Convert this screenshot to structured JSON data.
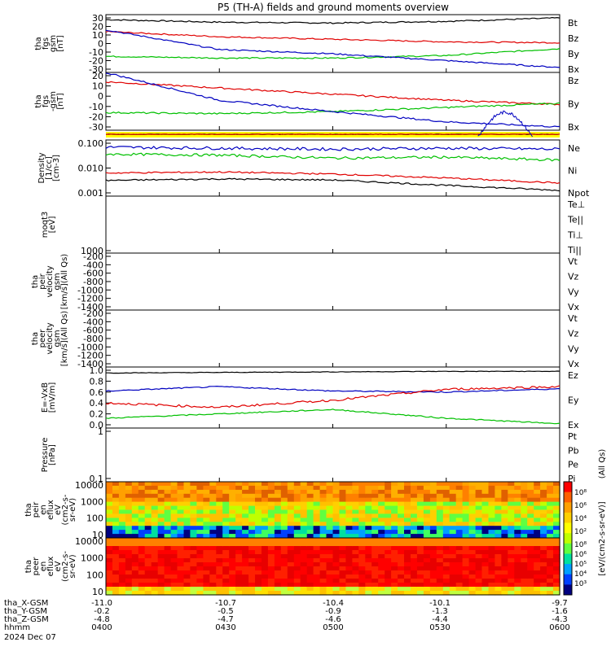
{
  "title": "P5 (TH-A) fields and ground moments overview",
  "panels": [
    {
      "ylabel": [
        "tha",
        "fgs",
        "gsm",
        "[nT]"
      ],
      "ticks": [
        "30",
        "20",
        "10",
        "0",
        "-10",
        "-20",
        "-30"
      ],
      "legend": [
        [
          "Bt",
          "#000000"
        ],
        [
          "Bz",
          "#e00000"
        ],
        [
          "By",
          "#00c000"
        ],
        [
          "Bx",
          "#0000c0"
        ]
      ]
    },
    {
      "ylabel": [
        "tha",
        "fgs",
        "-gsm",
        "[nT]"
      ],
      "ticks": [
        "20",
        "10",
        "0",
        "-10",
        "-20",
        "-30"
      ],
      "legend": [
        [
          "Bz",
          "#e00000"
        ],
        [
          "By",
          "#00c000"
        ],
        [
          "Bx",
          "#0000c0"
        ]
      ]
    },
    {
      "ylabel": [
        "Density",
        "[1/cc]",
        "[cm-3]"
      ],
      "ticks": [
        "0.100",
        "0.010",
        "0.001"
      ],
      "legend": [
        [
          "Ne",
          "#e00000"
        ],
        [
          "Ni",
          "#000000"
        ],
        [
          "Npot",
          "#0000c0"
        ]
      ]
    },
    {
      "ylabel": [
        "moqt3",
        "[eV]"
      ],
      "ticks": [
        "1000"
      ],
      "legend": [
        [
          "Te⊥",
          "#e00000"
        ],
        [
          "Te||",
          "#000000"
        ],
        [
          "Ti⊥",
          "#e00000"
        ],
        [
          "Ti||",
          "#00c000"
        ]
      ]
    },
    {
      "ylabel": [
        "tha",
        "peir",
        "velocity",
        "gsm",
        "[km/s](All Qs)"
      ],
      "ticks": [
        "-200",
        "-400",
        "-600",
        "-800",
        "-1000",
        "-1200",
        "-1400"
      ],
      "legend": [
        [
          "Vt",
          "#000000"
        ],
        [
          "Vz",
          "#e00000"
        ],
        [
          "Vy",
          "#00c000"
        ],
        [
          "Vx",
          "#0000c0"
        ]
      ]
    },
    {
      "ylabel": [
        "tha",
        "peer",
        "velocity",
        "gsm",
        "[km/s](All Qs)"
      ],
      "ticks": [
        "-200",
        "-400",
        "-600",
        "-800",
        "-1000",
        "-1200",
        "-1400"
      ],
      "legend": [
        [
          "Vt",
          "#000000"
        ],
        [
          "Vz",
          "#e00000"
        ],
        [
          "Vy",
          "#00c000"
        ],
        [
          "Vx",
          "#0000c0"
        ]
      ]
    },
    {
      "ylabel": [
        "E=-VxB",
        "[mV/m]"
      ],
      "ticks": [
        "1.0",
        "0.8",
        "0.6",
        "0.4",
        "0.2",
        "0.0"
      ],
      "legend": [
        [
          "Ez",
          "#e00000"
        ],
        [
          "Ey",
          "#00c000"
        ],
        [
          "Ex",
          "#0000c0"
        ]
      ]
    },
    {
      "ylabel": [
        "Pressure",
        "[nPa]"
      ],
      "ticks": [
        "1",
        "0.1"
      ],
      "legend": [
        [
          "Pt",
          "#000000"
        ],
        [
          "Pb",
          "#e00000"
        ],
        [
          "Pe",
          "#00c000"
        ],
        [
          "Pi",
          "#0000c0"
        ]
      ]
    },
    {
      "ylabel": [
        "tha",
        "peir",
        "en",
        "eflux",
        "eV",
        "(cm2-s-",
        "sr-eV)"
      ],
      "ticks": [
        "10000",
        "1000",
        "100",
        "10"
      ]
    },
    {
      "ylabel": [
        "tha",
        "peer",
        "en",
        "eflux",
        "eV",
        "(cm2-s-",
        "sr-eV)"
      ],
      "ticks": [
        "10000",
        "1000",
        "100",
        "10"
      ]
    }
  ],
  "colorbar": {
    "label": "[eV/(cm2-s-sr-eV)]",
    "ticks": [
      "10⁸",
      "10⁶",
      "10⁴",
      "10²"
    ],
    "ticks2": [
      "10⁸",
      "10⁶",
      "10⁵",
      "10⁴",
      "10³"
    ]
  },
  "units_right": "(All Qs)",
  "bottom": {
    "rows": [
      {
        "label": "tha_X-GSM",
        "values": [
          "-11.0",
          "-10.7",
          "-10.4",
          "-10.1",
          "-9.7"
        ]
      },
      {
        "label": "tha_Y-GSM",
        "values": [
          "-0.2",
          "-0.5",
          "-0.9",
          "-1.3",
          "-1.6"
        ]
      },
      {
        "label": "tha_Z-GSM",
        "values": [
          "-4.8",
          "-4.7",
          "-4.6",
          "-4.4",
          "-4.3"
        ]
      },
      {
        "label": "hhmm",
        "values": [
          "0400",
          "0430",
          "0500",
          "0530",
          "0600"
        ]
      }
    ],
    "date": "2024 Dec 07"
  },
  "chart_data": {
    "type": "line",
    "x": [
      "0400",
      "0430",
      "0500",
      "0530",
      "0600"
    ],
    "series": [
      {
        "name": "Bt",
        "panel": 0,
        "values": [
          28,
          25,
          24,
          26,
          30
        ]
      },
      {
        "name": "Bz",
        "panel": 0,
        "values": [
          14,
          8,
          5,
          2,
          1
        ]
      },
      {
        "name": "By",
        "panel": 0,
        "values": [
          -15,
          -17,
          -17,
          -14,
          -6
        ]
      },
      {
        "name": "Bx",
        "panel": 0,
        "values": [
          16,
          -7,
          -12,
          -20,
          -28
        ]
      },
      {
        "name": "Bz",
        "panel": 1,
        "values": [
          14,
          8,
          2,
          -4,
          -8
        ]
      },
      {
        "name": "By",
        "panel": 1,
        "values": [
          -16,
          -17,
          -15,
          -11,
          -7
        ]
      },
      {
        "name": "Bx",
        "panel": 1,
        "values": [
          23,
          -4,
          -15,
          -25,
          -30
        ]
      }
    ]
  }
}
